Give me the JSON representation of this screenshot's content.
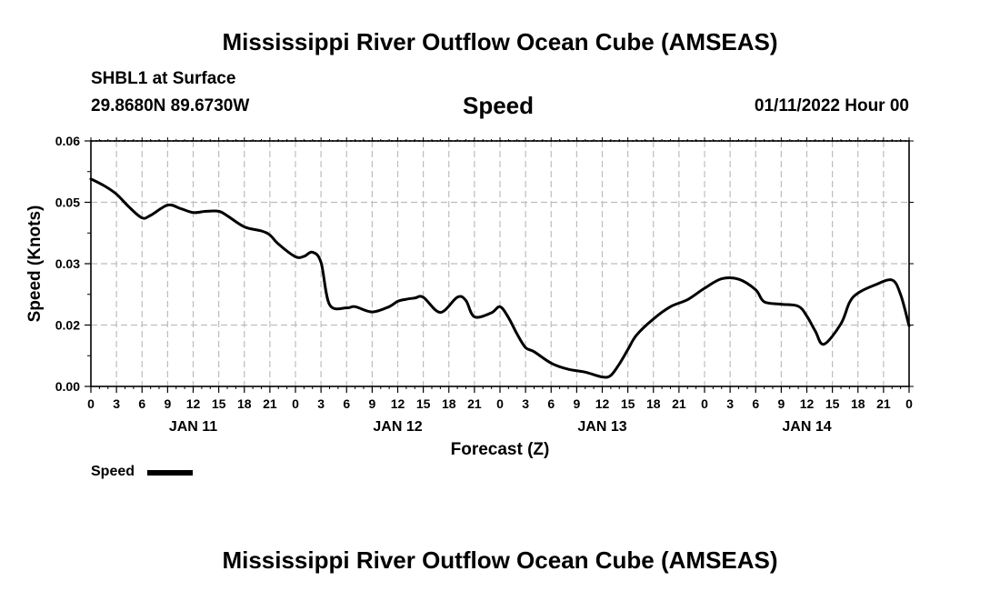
{
  "header": {
    "title": "Mississippi River Outflow Ocean Cube (AMSEAS)",
    "station": "SHBL1 at Surface",
    "coords": "29.8680N  89.6730W",
    "variable": "Speed",
    "datetime": "01/11/2022 Hour 00"
  },
  "footer": {
    "title": "Mississippi River Outflow Ocean Cube (AMSEAS)"
  },
  "chart_data": {
    "type": "line",
    "title": "Speed",
    "xlabel": "Forecast (Z)",
    "ylabel": "Speed (Knots)",
    "ylim": [
      0,
      0.06
    ],
    "xlim": [
      0,
      96
    ],
    "yticks": [
      "0.00",
      "0.02",
      "0.03",
      "0.05",
      "0.06"
    ],
    "ytick_values": [
      0,
      0.015,
      0.03,
      0.045,
      0.06
    ],
    "xtick_labels": [
      "0",
      "3",
      "6",
      "9",
      "12",
      "15",
      "18",
      "21",
      "0",
      "3",
      "6",
      "9",
      "12",
      "15",
      "18",
      "21",
      "0",
      "3",
      "6",
      "9",
      "12",
      "15",
      "18",
      "21",
      "0",
      "3",
      "6",
      "9",
      "12",
      "15",
      "18",
      "21",
      "0"
    ],
    "day_labels": [
      {
        "label": "JAN 11",
        "hour": 12
      },
      {
        "label": "JAN 12",
        "hour": 36
      },
      {
        "label": "JAN 13",
        "hour": 60
      },
      {
        "label": "JAN 14",
        "hour": 84
      }
    ],
    "grid": true,
    "legend": {
      "label": "Speed",
      "position": "bottom-left"
    },
    "series": [
      {
        "name": "Speed",
        "x": [
          0,
          1.5,
          3,
          4.5,
          6,
          7,
          9,
          10.5,
          12,
          13.5,
          15,
          16,
          18,
          20,
          21,
          22,
          24,
          25,
          26,
          27,
          28,
          30,
          31,
          33,
          35,
          36,
          37,
          38,
          39,
          41,
          43,
          44,
          45,
          47,
          48,
          49,
          50,
          51,
          52,
          54,
          56,
          58,
          60,
          61,
          62,
          63,
          64,
          66,
          68,
          70,
          72,
          74,
          76,
          78,
          79,
          81,
          83,
          84,
          85,
          86,
          88,
          89,
          90,
          92,
          94,
          95,
          96
        ],
        "y": [
          0.0507,
          0.0491,
          0.047,
          0.0438,
          0.0412,
          0.0418,
          0.0443,
          0.0435,
          0.0425,
          0.0428,
          0.0428,
          0.0417,
          0.039,
          0.038,
          0.037,
          0.0348,
          0.0317,
          0.0318,
          0.0328,
          0.0303,
          0.02,
          0.0192,
          0.0195,
          0.0182,
          0.0195,
          0.0208,
          0.0213,
          0.0216,
          0.0218,
          0.0181,
          0.0218,
          0.021,
          0.017,
          0.018,
          0.0195,
          0.0168,
          0.0128,
          0.0095,
          0.0085,
          0.0057,
          0.0042,
          0.0035,
          0.0023,
          0.0027,
          0.0055,
          0.009,
          0.0125,
          0.0165,
          0.0195,
          0.0212,
          0.024,
          0.0263,
          0.0262,
          0.0236,
          0.0207,
          0.0201,
          0.0196,
          0.0172,
          0.0135,
          0.0103,
          0.0153,
          0.0205,
          0.0228,
          0.0248,
          0.026,
          0.0225,
          0.0148
        ]
      }
    ]
  }
}
